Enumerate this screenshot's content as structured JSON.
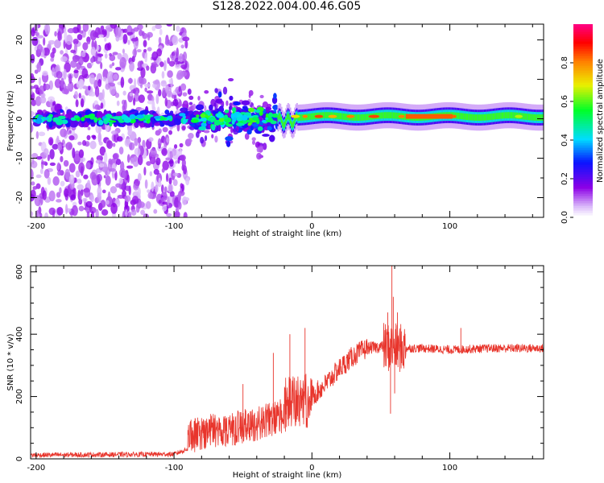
{
  "title": "S128.2022.004.00.46.G05",
  "chart_data": [
    {
      "type": "heatmap",
      "xlabel": "Height of straight line (km)",
      "ylabel": "Frequency (Hz)",
      "xlim": [
        -204,
        168
      ],
      "ylim": [
        -25,
        24
      ],
      "xticks": [
        -200,
        -100,
        0,
        100
      ],
      "yticks": [
        -20,
        -10,
        0,
        10,
        20
      ],
      "colorbar": {
        "label": "Normalized spectral amplitude",
        "ticks": [
          0.0,
          0.2,
          0.4,
          0.6,
          0.8
        ],
        "range": [
          0,
          1
        ],
        "colors": [
          "#ffffff",
          "#8a00e0",
          "#0010ff",
          "#00e0ff",
          "#00ff20",
          "#f0f000",
          "#ff8000",
          "#ff0000",
          "#ff0080"
        ]
      },
      "regions": [
        {
          "x": [
            -204,
            -90
          ],
          "description_y": [
            -25,
            24
          ],
          "amplitude": 0.1
        },
        {
          "x": [
            -200,
            -90
          ],
          "y": 0,
          "amplitude": 0.45
        },
        {
          "x": [
            -85,
            -25
          ],
          "y": 0,
          "amplitude": 0.5
        },
        {
          "x": [
            -10,
            168
          ],
          "y": 0.5,
          "amplitude": 0.8
        }
      ],
      "grid": false
    },
    {
      "type": "line",
      "xlabel": "Height of straight line (km)",
      "ylabel": "SNR (10 * v/v)",
      "xlim": [
        -204,
        168
      ],
      "ylim": [
        0,
        620
      ],
      "xticks": [
        -200,
        -100,
        0,
        100
      ],
      "yticks": [
        0,
        200,
        400,
        600
      ],
      "color": "#e8352c",
      "grid": false,
      "profile": [
        {
          "x": -204,
          "y": 12
        },
        {
          "x": -100,
          "y": 15
        },
        {
          "x": -85,
          "y": 40
        },
        {
          "x": -75,
          "y": 70
        },
        {
          "x": -60,
          "y": 80
        },
        {
          "x": -45,
          "y": 100
        },
        {
          "x": -30,
          "y": 140
        },
        {
          "x": -15,
          "y": 180
        },
        {
          "x": 0,
          "y": 200
        },
        {
          "x": 10,
          "y": 240
        },
        {
          "x": 20,
          "y": 290
        },
        {
          "x": 30,
          "y": 330
        },
        {
          "x": 40,
          "y": 355
        },
        {
          "x": 50,
          "y": 360
        },
        {
          "x": 60,
          "y": 355
        },
        {
          "x": 80,
          "y": 355
        },
        {
          "x": 100,
          "y": 350
        },
        {
          "x": 130,
          "y": 355
        },
        {
          "x": 168,
          "y": 355
        }
      ],
      "spikes": [
        {
          "x": -50,
          "y": 240
        },
        {
          "x": -28,
          "y": 340
        },
        {
          "x": -16,
          "y": 400
        },
        {
          "x": -5,
          "y": 420
        },
        {
          "x": 55,
          "y": 470
        },
        {
          "x": 57,
          "y": 145
        },
        {
          "x": 58,
          "y": 630
        },
        {
          "x": 59,
          "y": 520
        },
        {
          "x": 60,
          "y": 210
        },
        {
          "x": 62,
          "y": 470
        },
        {
          "x": 108,
          "y": 420
        }
      ]
    }
  ]
}
